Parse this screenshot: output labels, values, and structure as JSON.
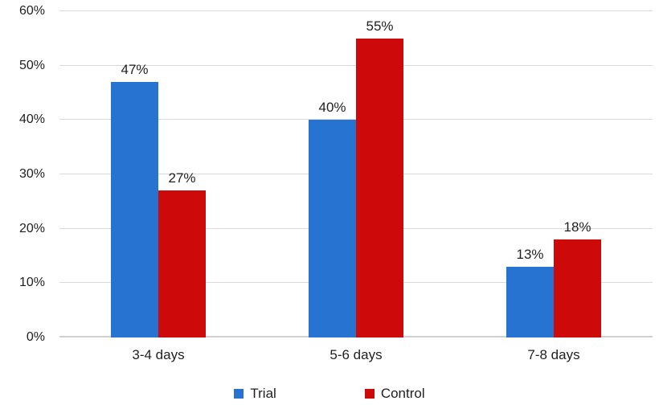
{
  "chart_data": {
    "type": "bar",
    "categories": [
      "3-4 days",
      "5-6 days",
      "7-8 days"
    ],
    "series": [
      {
        "name": "Trial",
        "color": "#2673D2",
        "values": [
          47,
          40,
          13
        ],
        "data_labels": [
          "47%",
          "40%",
          "13%"
        ]
      },
      {
        "name": "Control",
        "color": "#CD0909",
        "values": [
          27,
          55,
          18
        ],
        "data_labels": [
          "27%",
          "55%",
          "18%"
        ]
      }
    ],
    "y_axis": {
      "min": 0,
      "max": 60,
      "tick_step": 10,
      "ticks": [
        "0%",
        "10%",
        "20%",
        "30%",
        "40%",
        "50%",
        "60%"
      ]
    },
    "legend": {
      "position": "bottom",
      "entries": [
        "Trial",
        "Control"
      ]
    },
    "grid": true
  },
  "colors": {
    "gridline": "#D9D9D9",
    "baseline": "#D0D0D0",
    "text": "#1F1F1F",
    "background": "#FFFFFF",
    "trial_blue": "#2673D2",
    "control_red": "#CD0909"
  }
}
